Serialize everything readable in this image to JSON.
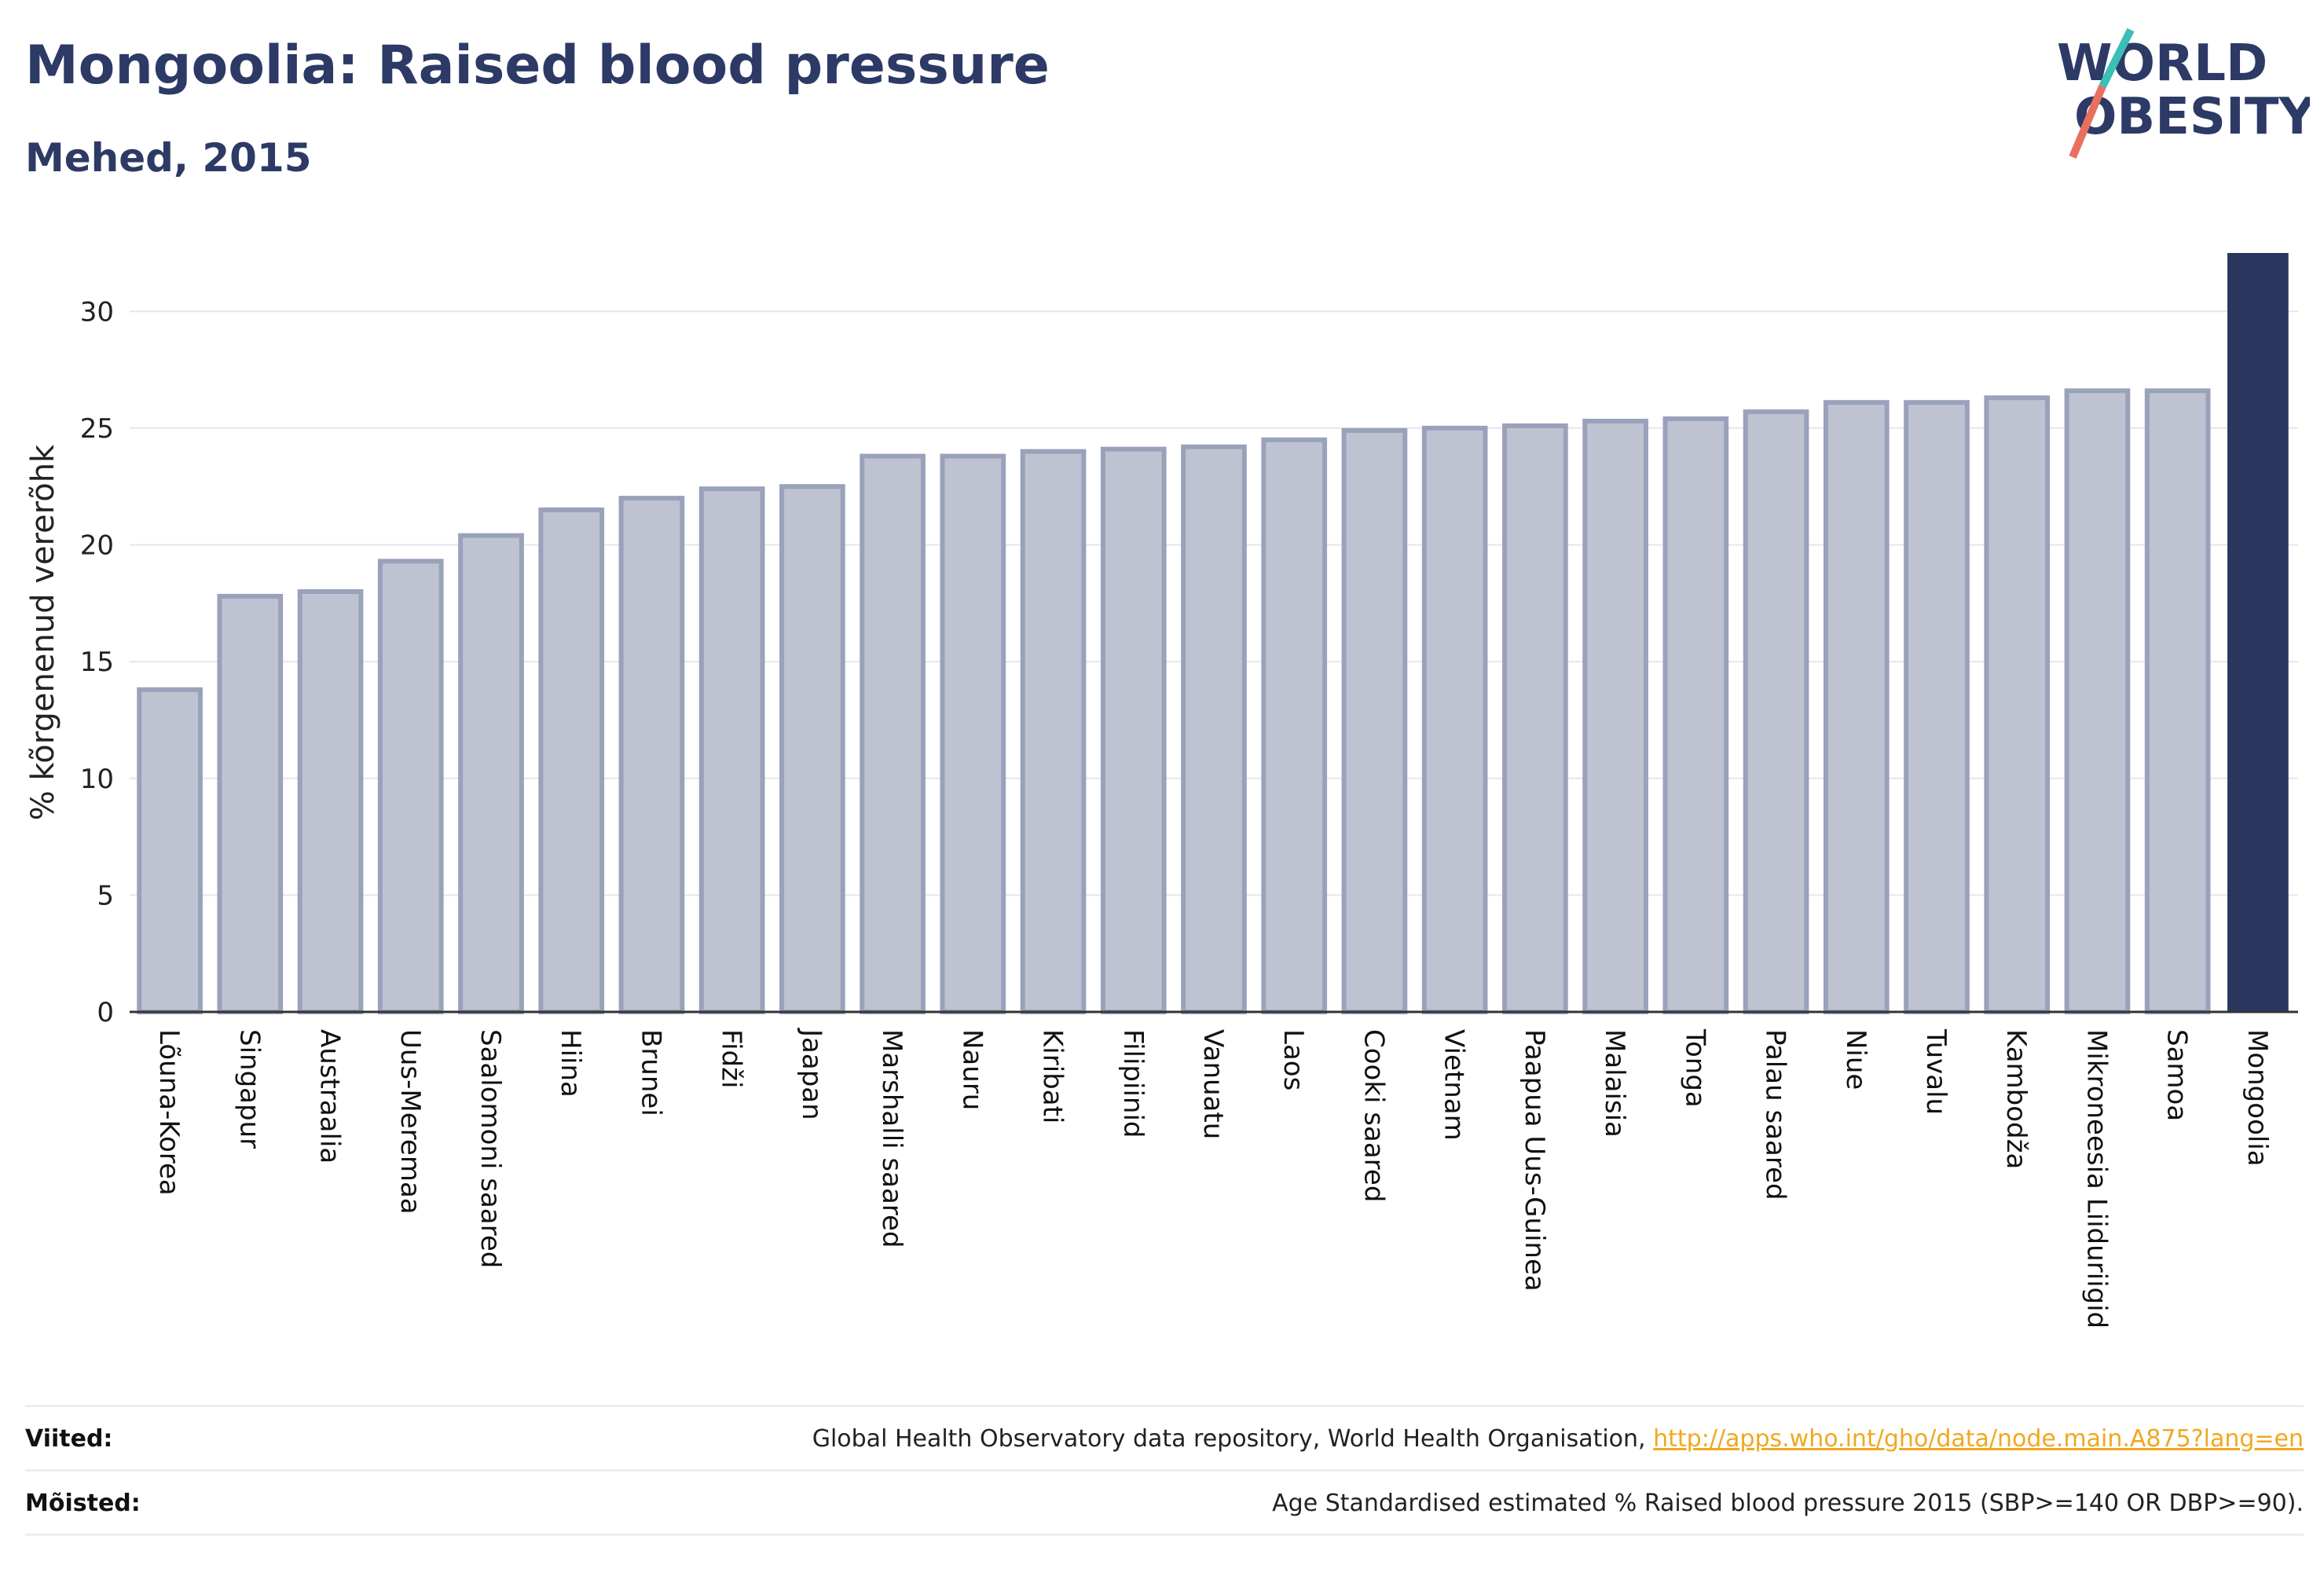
{
  "header": {
    "title": "Mongoolia: Raised blood pressure",
    "subtitle": "Mehed, 2015"
  },
  "logo": {
    "line1": "WORLD",
    "line2": "OBESITY",
    "colors": {
      "text": "#2d3a66",
      "slash_teal": "#3bbfb8",
      "slash_coral": "#e8705e"
    }
  },
  "colors": {
    "bar_fill": "#bfc3d1",
    "bar_stroke": "#9aa1ba",
    "highlight": "#2b365e",
    "grid": "#e6e6ec",
    "axis": "#333333"
  },
  "chart_data": {
    "type": "bar",
    "ylabel": "% kõrgenenud vererõhk",
    "xlabel": "",
    "ylim": [
      0,
      32.5
    ],
    "yticks": [
      0,
      5,
      10,
      15,
      20,
      25,
      30
    ],
    "grid": true,
    "highlight": "Mongoolia",
    "categories": [
      "Lõuna-Korea",
      "Singapur",
      "Austraalia",
      "Uus-Meremaa",
      "Saalomoni saared",
      "Hiina",
      "Brunei",
      "Fidži",
      "Jaapan",
      "Marshalli saared",
      "Nauru",
      "Kiribati",
      "Filipiinid",
      "Vanuatu",
      "Laos",
      "Cooki saared",
      "Vietnam",
      "Paapua Uus-Guinea",
      "Malaisia",
      "Tonga",
      "Palau saared",
      "Niue",
      "Tuvalu",
      "Kambodža",
      "Mikroneesia Liiduriigid",
      "Samoa",
      "Mongoolia"
    ],
    "values": [
      13.8,
      17.8,
      18.0,
      19.3,
      20.4,
      21.5,
      22.0,
      22.4,
      22.5,
      23.8,
      23.8,
      24.0,
      24.1,
      24.2,
      24.5,
      24.9,
      25.0,
      25.1,
      25.3,
      25.4,
      25.7,
      26.1,
      26.1,
      26.3,
      26.6,
      26.6,
      32.5
    ]
  },
  "footer": {
    "sources_label": "Viited:",
    "sources_text": "Global Health Observatory data repository, World Health Organisation,",
    "sources_link": "http://apps.who.int/gho/data/node.main.A875?lang=en",
    "definitions_label": "Mõisted:",
    "definitions_text": "Age Standardised estimated % Raised blood pressure 2015 (SBP>=140 OR DBP>=90)."
  }
}
